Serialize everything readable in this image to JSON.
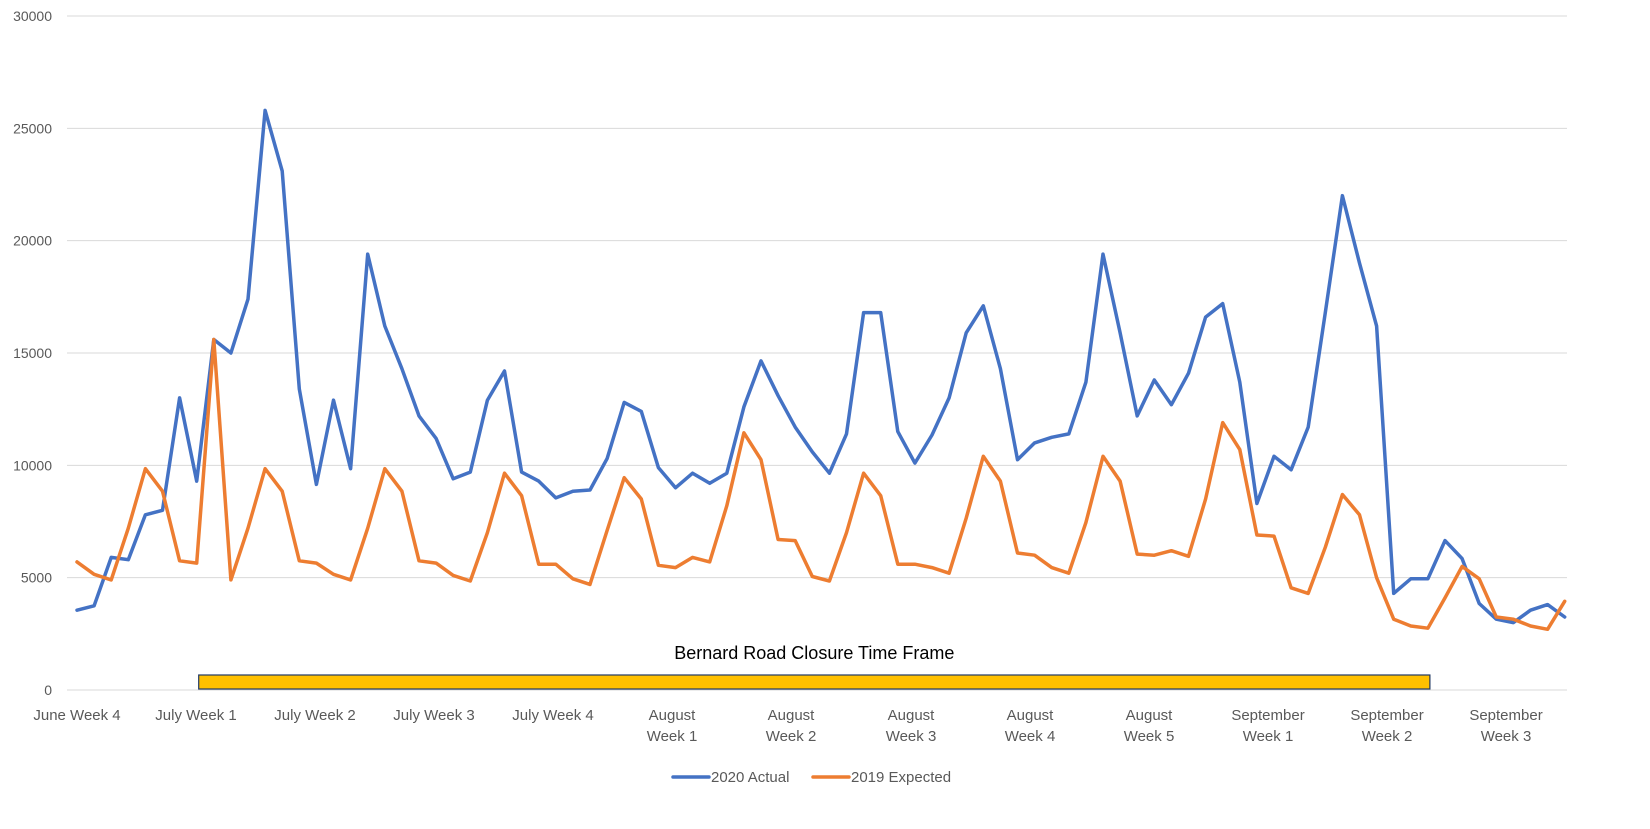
{
  "chart_data": {
    "type": "line",
    "title": "",
    "xlabel": "",
    "ylabel": "",
    "ylim": [
      0,
      30000
    ],
    "yticks": [
      0,
      5000,
      10000,
      15000,
      20000,
      25000,
      30000
    ],
    "grid": true,
    "legend_position": "bottom",
    "x_tick_labels": [
      [
        "June Week 4"
      ],
      [
        "July Week 1"
      ],
      [
        "July Week 2"
      ],
      [
        "July Week 3"
      ],
      [
        "July Week 4"
      ],
      [
        "August",
        "Week 1"
      ],
      [
        "August",
        "Week 2"
      ],
      [
        "August",
        "Week 3"
      ],
      [
        "August",
        "Week 4"
      ],
      [
        "August",
        "Week 5"
      ],
      [
        "September",
        "Week 1"
      ],
      [
        "September",
        "Week 2"
      ],
      [
        "September",
        "Week 3"
      ]
    ],
    "series": [
      {
        "name": "2020 Actual",
        "color": "#4472C4",
        "values": [
          3550,
          3750,
          5900,
          5800,
          7800,
          8000,
          13000,
          9300,
          15600,
          15000,
          17400,
          25800,
          23100,
          13400,
          9150,
          12900,
          9850,
          19400,
          16200,
          14300,
          12200,
          11200,
          9400,
          9700,
          12900,
          14200,
          9700,
          9300,
          8550,
          8850,
          8900,
          10300,
          12800,
          12400,
          9900,
          9000,
          9650,
          9200,
          9650,
          12600,
          14650,
          13100,
          11700,
          10600,
          9650,
          11400,
          16800,
          16800,
          11500,
          10100,
          11350,
          13000,
          15900,
          17100,
          14300,
          10250,
          11000,
          11250,
          11400,
          13700,
          19400,
          15900,
          12200,
          13800,
          12700,
          14100,
          16600,
          17200,
          13700,
          8300,
          10400,
          9800,
          11700,
          16800,
          22000,
          19000,
          16200,
          4300,
          4950,
          4950,
          6650,
          5850,
          3850,
          3150,
          3000,
          3550,
          3800,
          3250
        ]
      },
      {
        "name": "2019 Expected",
        "color": "#ED7D31",
        "values": [
          5700,
          5150,
          4900,
          7200,
          9850,
          8850,
          5750,
          5650,
          15600,
          4900,
          7200,
          9850,
          8850,
          5750,
          5650,
          5150,
          4900,
          7200,
          9850,
          8850,
          5750,
          5650,
          5100,
          4850,
          7000,
          9650,
          8650,
          5600,
          5600,
          4950,
          4700,
          7100,
          9450,
          8500,
          5550,
          5450,
          5900,
          5700,
          8200,
          11450,
          10250,
          6700,
          6650,
          5050,
          4850,
          7000,
          9650,
          8650,
          5600,
          5600,
          5450,
          5200,
          7650,
          10400,
          9300,
          6100,
          6000,
          5450,
          5200,
          7450,
          10400,
          9300,
          6050,
          6000,
          6200,
          5950,
          8500,
          11900,
          10700,
          6900,
          6850,
          4550,
          4300,
          6350,
          8700,
          7800,
          5000,
          3150,
          2850,
          2750,
          4100,
          5500,
          4950,
          3250,
          3150,
          2850,
          2700,
          3950
        ]
      }
    ],
    "annotations": [
      {
        "label": "Bernard Road Closure Time Frame",
        "color": "#FFC000",
        "border_color": "#203864",
        "x_start_index": 7,
        "x_end_index": 79
      }
    ]
  }
}
